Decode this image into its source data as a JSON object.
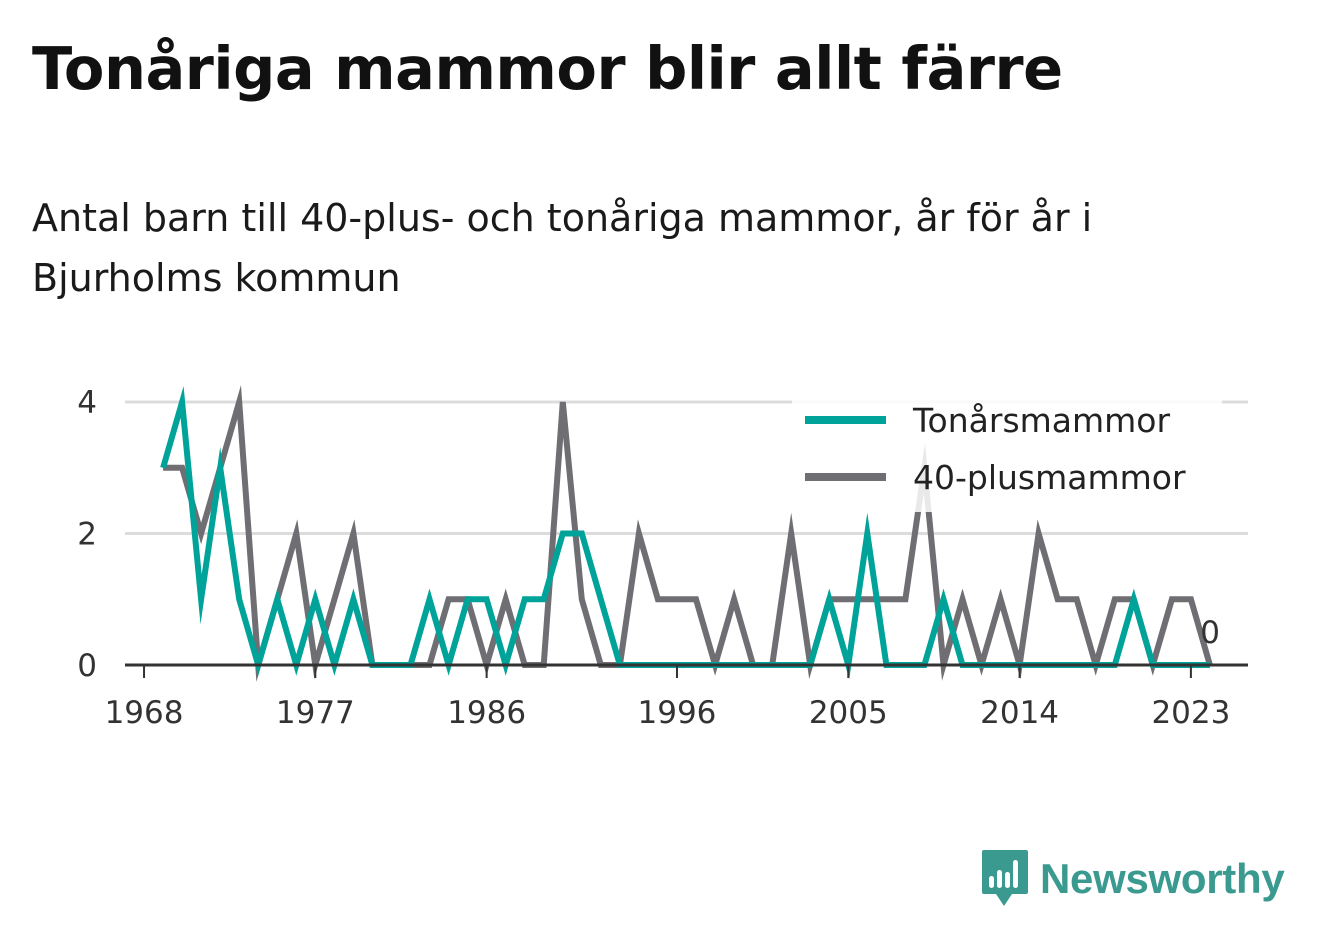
{
  "title": "Tonåriga mammor blir allt färre",
  "subtitle": "Antal barn till 40-plus- och tonåriga mammor, år för år i Bjurholms kommun",
  "brand": "Newsworthy",
  "chart_data": {
    "type": "line",
    "x_ticks": [
      1968,
      1977,
      1986,
      1996,
      2005,
      2014,
      2023
    ],
    "y_ticks": [
      0,
      2,
      4
    ],
    "ylim": [
      0,
      4
    ],
    "xlim": [
      1967,
      2026
    ],
    "grid": true,
    "legend_position": "top-right",
    "end_label": "0",
    "x": [
      1969,
      1970,
      1971,
      1972,
      1973,
      1974,
      1975,
      1976,
      1977,
      1978,
      1979,
      1980,
      1981,
      1982,
      1983,
      1984,
      1985,
      1986,
      1987,
      1988,
      1989,
      1990,
      1991,
      1992,
      1993,
      1994,
      1995,
      1996,
      1997,
      1998,
      1999,
      2000,
      2001,
      2002,
      2003,
      2004,
      2005,
      2006,
      2007,
      2008,
      2009,
      2010,
      2011,
      2012,
      2013,
      2014,
      2015,
      2016,
      2017,
      2018,
      2019,
      2020,
      2021,
      2022,
      2023,
      2024
    ],
    "series": [
      {
        "name": "Tonårsmammor",
        "color": "#00a399",
        "values": [
          3,
          4,
          1,
          3,
          1,
          0,
          1,
          0,
          1,
          0,
          1,
          0,
          0,
          0,
          1,
          0,
          1,
          1,
          0,
          1,
          1,
          2,
          2,
          1,
          0,
          0,
          0,
          0,
          0,
          0,
          0,
          0,
          0,
          0,
          0,
          1,
          0,
          2,
          0,
          0,
          0,
          1,
          0,
          0,
          0,
          0,
          0,
          0,
          0,
          0,
          0,
          1,
          0,
          0,
          0,
          0
        ]
      },
      {
        "name": "40-plusmammor",
        "color": "#6e6e73",
        "values": [
          3,
          3,
          2,
          3,
          4,
          0,
          1,
          2,
          0,
          1,
          2,
          0,
          0,
          0,
          0,
          1,
          1,
          0,
          1,
          0,
          0,
          4,
          1,
          0,
          0,
          2,
          1,
          1,
          1,
          0,
          1,
          0,
          0,
          2,
          0,
          1,
          1,
          1,
          1,
          1,
          3,
          0,
          1,
          0,
          1,
          0,
          2,
          1,
          1,
          0,
          1,
          1,
          0,
          1,
          1,
          0
        ]
      }
    ]
  }
}
